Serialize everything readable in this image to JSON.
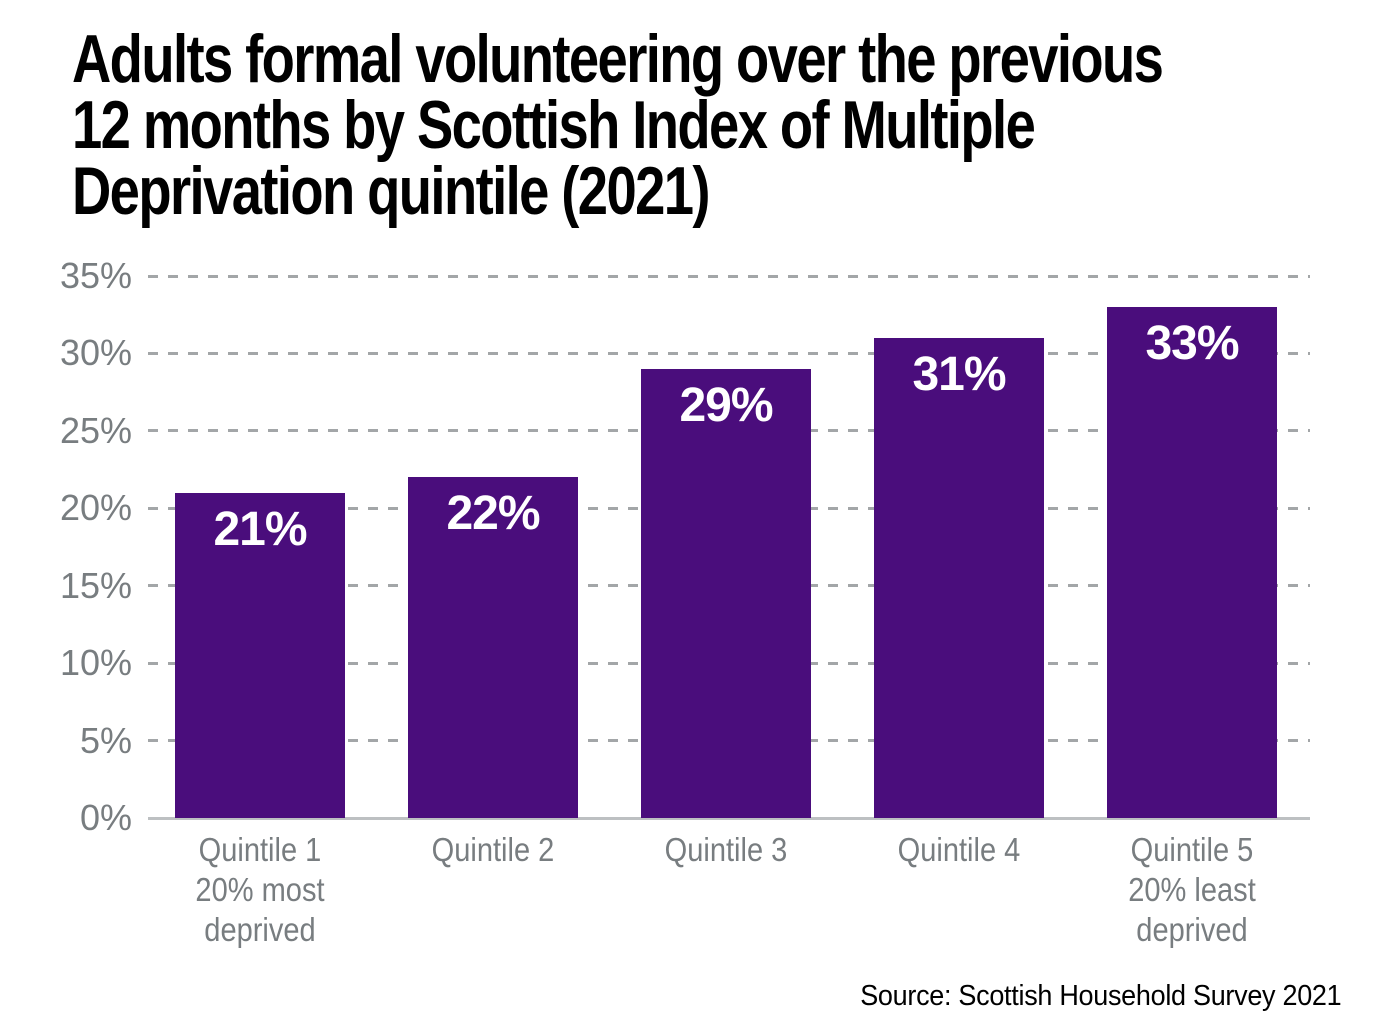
{
  "title": {
    "lines": [
      "Adults formal volunteering over the previous",
      "12 months by Scottish Index of Multiple",
      "Deprivation quintile (2021)"
    ]
  },
  "source": "Source: Scottish Household Survey 2021",
  "chart_data": {
    "type": "bar",
    "title": "Adults formal volunteering over the previous 12 months by Scottish Index of Multiple Deprivation quintile (2021)",
    "categories": [
      [
        "Quintile 1",
        "20% most",
        "deprived"
      ],
      [
        "Quintile 2"
      ],
      [
        "Quintile 3"
      ],
      [
        "Quintile 4"
      ],
      [
        "Quintile 5",
        "20% least",
        "deprived"
      ]
    ],
    "values": [
      21,
      22,
      29,
      31,
      33
    ],
    "bar_labels": [
      "21%",
      "22%",
      "29%",
      "31%",
      "33%"
    ],
    "y_ticks": [
      {
        "value": 35,
        "label": "35%"
      },
      {
        "value": 30,
        "label": "30%"
      },
      {
        "value": 25,
        "label": "25%"
      },
      {
        "value": 20,
        "label": "20%"
      },
      {
        "value": 15,
        "label": "15%"
      },
      {
        "value": 10,
        "label": "10%"
      },
      {
        "value": 5,
        "label": "5%"
      },
      {
        "value": 0,
        "label": "0%"
      }
    ],
    "ylim": [
      0,
      35
    ],
    "xlabel": "",
    "ylabel": "",
    "grid": "horizontal-dashed",
    "legend": "none",
    "colors": {
      "bar": "#4a0d7c",
      "bar_label": "#ffffff",
      "axis_text": "#787d80",
      "gridline": "#a3a6a8",
      "baseline": "#bdc0c2",
      "title": "#000000",
      "source": "#000000",
      "background": "#ffffff"
    }
  }
}
